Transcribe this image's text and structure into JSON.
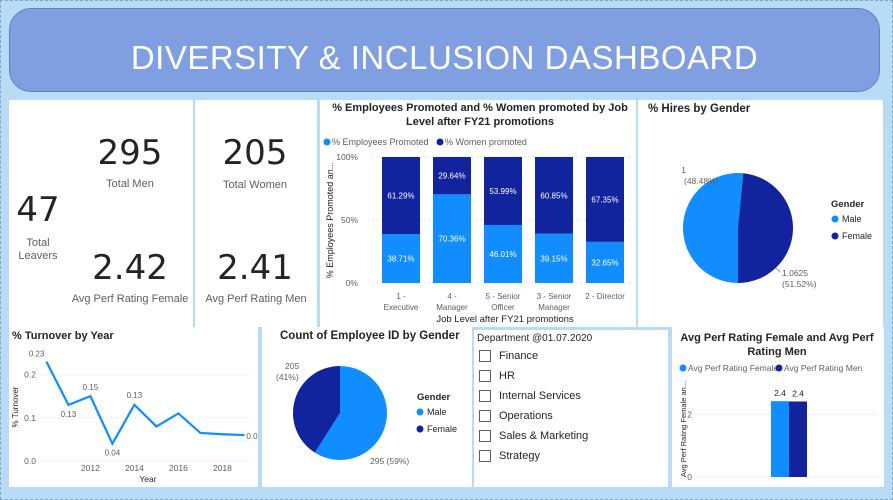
{
  "dashboard": {
    "title": "DIVERSITY & INCLUSION DASHBOARD"
  },
  "kpis": {
    "total_men": {
      "value": "295",
      "label": "Total Men"
    },
    "total_women": {
      "value": "205",
      "label": "Total Women"
    },
    "total_leavers": {
      "value": "47",
      "label_line1": "Total",
      "label_line2": "Leavers"
    },
    "perf_female": {
      "value": "2.42",
      "label": "Avg Perf Rating Female"
    },
    "perf_men": {
      "value": "2.41",
      "label": "Avg Perf Rating Men"
    }
  },
  "colors": {
    "light_blue": "#118dff",
    "dark_blue": "#12239e",
    "banner": "#7f9fe1",
    "background": "#b9dcf6"
  },
  "slicer": {
    "title": "Department @01.07.2020",
    "items": [
      "Finance",
      "HR",
      "Internal Services",
      "Operations",
      "Sales & Marketing",
      "Strategy"
    ]
  },
  "chart_data": [
    {
      "id": "promoted",
      "type": "bar",
      "stacked": "100%",
      "title_line1": "% Employees Promoted and % Women promoted by Job",
      "title_line2": "Level after FY21 promotions",
      "xlabel": "Job Level after FY21 promotions",
      "ylabel": "% Employees Promoted an...",
      "yticks": [
        "0%",
        "50%",
        "100%"
      ],
      "legend": "top-left",
      "categories": [
        [
          "1 -",
          "Executive"
        ],
        [
          "4 -",
          "Manager"
        ],
        [
          "5 - Senior",
          "Officer"
        ],
        [
          "3 - Senior",
          "Manager"
        ],
        [
          "2 - Director"
        ]
      ],
      "series": [
        {
          "name": "% Employees Promoted",
          "color": "#118dff",
          "values": [
            38.71,
            70.36,
            46.01,
            39.15,
            32.65
          ],
          "labels": [
            "38.71%",
            "70.36%",
            "46.01%",
            "39.15%",
            "32.65%"
          ]
        },
        {
          "name": "% Women promoted",
          "color": "#12239e",
          "values": [
            61.29,
            29.64,
            53.99,
            60.85,
            67.35
          ],
          "labels": [
            "61.29%",
            "29.64%",
            "53.99%",
            "60.85%",
            "67.35%"
          ]
        }
      ]
    },
    {
      "id": "hires",
      "type": "pie",
      "title": "% Hires by Gender",
      "legend_title": "Gender",
      "legend": "right",
      "slices": [
        {
          "name": "Male",
          "value": 1.0625,
          "label_line1": "1.0625",
          "label_line2": "(51.52%)",
          "color": "#118dff"
        },
        {
          "name": "Female",
          "value": 1,
          "label_line1": "1",
          "label_line2": "(48.48%)",
          "color": "#12239e"
        }
      ]
    },
    {
      "id": "turnover",
      "type": "line",
      "title": "% Turnover by Year",
      "xlabel": "Year",
      "ylabel": "% Turnover",
      "ylim": [
        0,
        0.25
      ],
      "yticks": [
        "0.0",
        "0.1",
        "0.2"
      ],
      "xticks": [
        "2012",
        "2014",
        "2016",
        "2018"
      ],
      "x": [
        2010,
        2011,
        2012,
        2013,
        2014,
        2015,
        2016,
        2017,
        2018,
        2019
      ],
      "values": [
        0.23,
        0.13,
        0.15,
        0.04,
        0.13,
        0.08,
        0.11,
        0.065,
        0.062,
        0.06
      ],
      "labels": [
        "0.23",
        "0.13",
        "0.15",
        "0.04",
        "0.13",
        "",
        "",
        "",
        "",
        "0.06"
      ],
      "color": "#118dff"
    },
    {
      "id": "count",
      "type": "pie",
      "title": "Count of Employee ID by Gender",
      "legend_title": "Gender",
      "legend": "right",
      "slices": [
        {
          "name": "Male",
          "value": 295,
          "label_line1": "295 (59%)",
          "label_line2": "",
          "color": "#118dff"
        },
        {
          "name": "Female",
          "value": 205,
          "label_line1": "205",
          "label_line2": "(41%)",
          "color": "#12239e"
        }
      ]
    },
    {
      "id": "perf",
      "type": "bar",
      "title_line1": "Avg Perf Rating Female and Avg Perf",
      "title_line2": "Rating Men",
      "ylabel": "Avg Perf Rating Female an...",
      "ylim": [
        0,
        3
      ],
      "yticks": [
        "0",
        "2"
      ],
      "legend": "top-left",
      "series": [
        {
          "name": "Avg Perf Rating Female",
          "value": 2.42,
          "label": "2.4",
          "color": "#118dff"
        },
        {
          "name": "Avg Perf Rating Men",
          "value": 2.41,
          "label": "2.4",
          "color": "#12239e"
        }
      ]
    }
  ]
}
